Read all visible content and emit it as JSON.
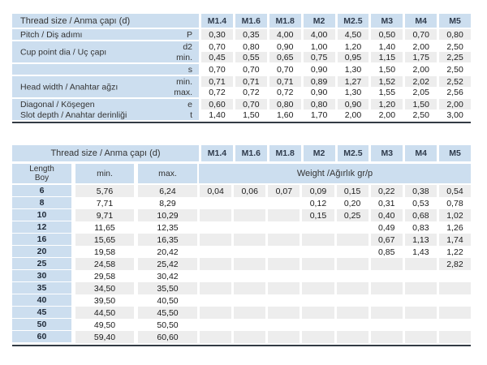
{
  "colors": {
    "cell_blue": "#ccdeef",
    "stripe_gray": "#ededed",
    "border_dark": "#333b44",
    "text": "#222222"
  },
  "spec_table": {
    "header": "Thread size / Anma çapı (d)",
    "sizes": [
      "M1.4",
      "M1.6",
      "M1.8",
      "M2",
      "M2.5",
      "M3",
      "M4",
      "M5"
    ],
    "rows": [
      {
        "label": "Pitch / Diş adımı",
        "sym": "P",
        "sep": true,
        "span2": false,
        "values": [
          "0,30",
          "0,35",
          "4,00",
          "4,00",
          "4,50",
          "0,50",
          "0,70",
          "0,80"
        ]
      },
      {
        "label": "Cup point dia / Uç çapı",
        "sym": "d2",
        "sep": true,
        "span2": true,
        "values": [
          "0,70",
          "0,80",
          "0,90",
          "1,00",
          "1,20",
          "1,40",
          "2,00",
          "2,50"
        ]
      },
      {
        "label": "",
        "sym": "min.",
        "sep": false,
        "span2": false,
        "values": [
          "0,45",
          "0,55",
          "0,65",
          "0,75",
          "0,95",
          "1,15",
          "1,75",
          "2,25"
        ]
      },
      {
        "label": "",
        "sym": "s",
        "sep": true,
        "span2": false,
        "values": [
          "0,70",
          "0,70",
          "0,70",
          "0,90",
          "1,30",
          "1,50",
          "2,00",
          "2,50"
        ]
      },
      {
        "label": "Head width / Anahtar ağzı",
        "sym": "min.",
        "sep": true,
        "span2": true,
        "values": [
          "0,71",
          "0,71",
          "0,71",
          "0,89",
          "1,27",
          "1,52",
          "2,02",
          "2,52"
        ]
      },
      {
        "label": "",
        "sym": "max.",
        "sep": false,
        "span2": false,
        "values": [
          "0,72",
          "0,72",
          "0,72",
          "0,90",
          "1,30",
          "1,55",
          "2,05",
          "2,56"
        ]
      },
      {
        "label": "Diagonal / Köşegen",
        "sym": "e",
        "sep": true,
        "span2": false,
        "values": [
          "0,60",
          "0,70",
          "0,80",
          "0,80",
          "0,90",
          "1,20",
          "1,50",
          "2,00"
        ]
      },
      {
        "label": "Slot depth / Anahtar derinliği",
        "sym": "t",
        "sep": false,
        "span2": false,
        "values": [
          "1,40",
          "1,50",
          "1,60",
          "1,70",
          "2,00",
          "2,00",
          "2,50",
          "3,00"
        ]
      }
    ]
  },
  "weight_table": {
    "header": "Thread size / Anma çapı (d)",
    "sizes": [
      "M1.4",
      "M1.6",
      "M1.8",
      "M2",
      "M2.5",
      "M3",
      "M4",
      "M5"
    ],
    "length_label_1": "Length",
    "length_label_2": "Boy",
    "min_label": "min.",
    "max_label": "max.",
    "weight_label": "Weight /Ağırlık gr/p",
    "rows": [
      {
        "length": "6",
        "min": "5,76",
        "max": "6,24",
        "weights": [
          "0,04",
          "0,06",
          "0,07",
          "0,09",
          "0,15",
          "0,22",
          "0,38",
          "0,54"
        ]
      },
      {
        "length": "8",
        "min": "7,71",
        "max": "8,29",
        "weights": [
          "",
          "",
          "",
          "0,12",
          "0,20",
          "0,31",
          "0,53",
          "0,78"
        ]
      },
      {
        "length": "10",
        "min": "9,71",
        "max": "10,29",
        "weights": [
          "",
          "",
          "",
          "0,15",
          "0,25",
          "0,40",
          "0,68",
          "1,02"
        ]
      },
      {
        "length": "12",
        "min": "11,65",
        "max": "12,35",
        "weights": [
          "",
          "",
          "",
          "",
          "",
          "0,49",
          "0,83",
          "1,26"
        ]
      },
      {
        "length": "16",
        "min": "15,65",
        "max": "16,35",
        "weights": [
          "",
          "",
          "",
          "",
          "",
          "0,67",
          "1,13",
          "1,74"
        ]
      },
      {
        "length": "20",
        "min": "19,58",
        "max": "20,42",
        "weights": [
          "",
          "",
          "",
          "",
          "",
          "0,85",
          "1,43",
          "1,22"
        ]
      },
      {
        "length": "25",
        "min": "24,58",
        "max": "25,42",
        "weights": [
          "",
          "",
          "",
          "",
          "",
          "",
          "",
          "2,82"
        ]
      },
      {
        "length": "30",
        "min": "29,58",
        "max": "30,42",
        "weights": [
          "",
          "",
          "",
          "",
          "",
          "",
          "",
          ""
        ]
      },
      {
        "length": "35",
        "min": "34,50",
        "max": "35,50",
        "weights": [
          "",
          "",
          "",
          "",
          "",
          "",
          "",
          ""
        ]
      },
      {
        "length": "40",
        "min": "39,50",
        "max": "40,50",
        "weights": [
          "",
          "",
          "",
          "",
          "",
          "",
          "",
          ""
        ]
      },
      {
        "length": "45",
        "min": "44,50",
        "max": "45,50",
        "weights": [
          "",
          "",
          "",
          "",
          "",
          "",
          "",
          ""
        ]
      },
      {
        "length": "50",
        "min": "49,50",
        "max": "50,50",
        "weights": [
          "",
          "",
          "",
          "",
          "",
          "",
          "",
          ""
        ]
      },
      {
        "length": "60",
        "min": "59,40",
        "max": "60,60",
        "weights": [
          "",
          "",
          "",
          "",
          "",
          "",
          "",
          ""
        ]
      }
    ]
  }
}
